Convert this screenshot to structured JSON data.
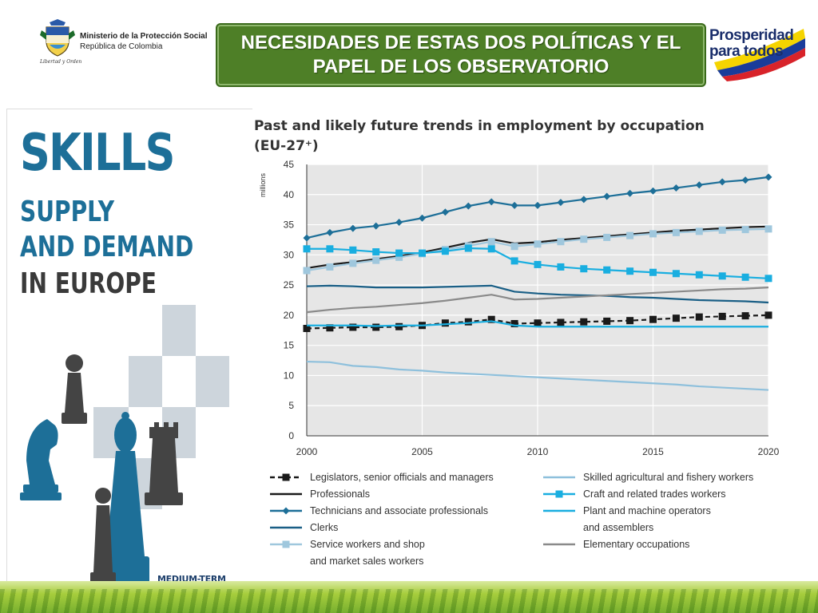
{
  "header": {
    "ministry_line1": "Ministerio de la Protección Social",
    "ministry_line2": "República de Colombia",
    "ministry_motto": "Libertad y Orden",
    "title_line1": "NECESIDADES DE ESTAS DOS POLÍTICAS Y EL",
    "title_line2": "PAPEL DE LOS OBSERVATORIO",
    "brand_word1": "Prosperidad",
    "brand_word2": "para todos",
    "colors": {
      "title_bg": "#4e7f27",
      "brand_navy": "#1a2e6b"
    }
  },
  "cover": {
    "line1": "SKILLS",
    "line2": "SUPPLY",
    "line3": "AND DEMAND",
    "line4": "IN EUROPE",
    "footer": "MEDIUM-TERM FORECAST",
    "colors": {
      "blue": "#1d6f98",
      "dark": "#3a3a3a",
      "tile": "#cdd5dc"
    }
  },
  "chart_data": {
    "type": "line",
    "title_line1": "Past and likely future trends in employment by occupation",
    "title_line2": "(EU-27⁺)",
    "ylabel": "millions",
    "xlabel": "",
    "ylim": [
      0,
      45
    ],
    "xlim": [
      2000,
      2020
    ],
    "yticks": [
      "0",
      "5",
      "10",
      "15",
      "20",
      "25",
      "30",
      "35",
      "40",
      "45"
    ],
    "xticks": [
      "2000",
      "2005",
      "2010",
      "2015",
      "2020"
    ],
    "grid": true,
    "x": [
      2000,
      2001,
      2002,
      2003,
      2004,
      2005,
      2006,
      2007,
      2008,
      2009,
      2010,
      2011,
      2012,
      2013,
      2014,
      2015,
      2016,
      2017,
      2018,
      2019,
      2020
    ],
    "series": [
      {
        "name": "Legislators, senior officials and managers",
        "color": "#1a1a1a",
        "marker": "square",
        "dashed": true,
        "col": 0,
        "row": 0,
        "values": [
          17.8,
          17.9,
          18.0,
          18.0,
          18.1,
          18.3,
          18.7,
          18.9,
          19.3,
          18.6,
          18.7,
          18.8,
          18.9,
          19.0,
          19.1,
          19.3,
          19.5,
          19.7,
          19.8,
          19.9,
          20.0
        ]
      },
      {
        "name": "Professionals",
        "color": "#1a1a1a",
        "marker": "none",
        "dashed": false,
        "col": 0,
        "row": 1,
        "values": [
          27.8,
          28.4,
          28.8,
          29.3,
          29.8,
          30.4,
          31.2,
          32.0,
          32.6,
          31.9,
          32.1,
          32.5,
          32.8,
          33.1,
          33.4,
          33.7,
          34.0,
          34.2,
          34.4,
          34.6,
          34.7
        ]
      },
      {
        "name": "Technicians and associate professionals",
        "color": "#1d6f98",
        "marker": "diamond",
        "dashed": false,
        "col": 0,
        "row": 2,
        "values": [
          32.8,
          33.7,
          34.4,
          34.8,
          35.4,
          36.1,
          37.1,
          38.1,
          38.8,
          38.2,
          38.2,
          38.7,
          39.2,
          39.7,
          40.2,
          40.6,
          41.1,
          41.6,
          42.1,
          42.4,
          42.9
        ]
      },
      {
        "name": "Clerks",
        "color": "#1a5f86",
        "marker": "none",
        "dashed": false,
        "col": 0,
        "row": 3,
        "values": [
          24.8,
          24.9,
          24.8,
          24.6,
          24.6,
          24.6,
          24.7,
          24.8,
          24.9,
          23.9,
          23.6,
          23.4,
          23.3,
          23.2,
          23.0,
          22.9,
          22.7,
          22.5,
          22.4,
          22.3,
          22.1
        ]
      },
      {
        "name": "Service workers and shop",
        "name_line2": "and market sales workers",
        "color": "#9fc7dd",
        "marker": "square",
        "dashed": false,
        "col": 0,
        "row": 4,
        "values": [
          27.4,
          28.0,
          28.6,
          29.1,
          29.6,
          30.2,
          30.9,
          31.5,
          32.2,
          31.4,
          31.8,
          32.2,
          32.6,
          32.9,
          33.2,
          33.5,
          33.7,
          33.9,
          34.1,
          34.2,
          34.3
        ]
      },
      {
        "name": "Skilled agricultural and fishery workers",
        "color": "#8ec0dc",
        "marker": "none",
        "dashed": false,
        "col": 1,
        "row": 0,
        "values": [
          12.3,
          12.2,
          11.6,
          11.4,
          11.0,
          10.8,
          10.5,
          10.3,
          10.1,
          9.9,
          9.7,
          9.5,
          9.3,
          9.1,
          8.9,
          8.7,
          8.5,
          8.2,
          8.0,
          7.8,
          7.6
        ]
      },
      {
        "name": "Craft and related trades workers",
        "color": "#19aee0",
        "marker": "square",
        "dashed": false,
        "col": 1,
        "row": 1,
        "values": [
          31.0,
          31.0,
          30.8,
          30.5,
          30.3,
          30.3,
          30.6,
          31.1,
          31.0,
          29.0,
          28.4,
          28.0,
          27.7,
          27.5,
          27.3,
          27.1,
          26.9,
          26.7,
          26.5,
          26.3,
          26.1
        ]
      },
      {
        "name": "Plant and machine operators",
        "name_line2": "and assemblers",
        "color": "#19aee0",
        "marker": "none",
        "dashed": false,
        "col": 1,
        "row": 2,
        "values": [
          18.3,
          18.3,
          18.3,
          18.2,
          18.3,
          18.3,
          18.5,
          18.7,
          19.0,
          18.3,
          18.1,
          18.1,
          18.1,
          18.1,
          18.1,
          18.1,
          18.1,
          18.1,
          18.1,
          18.1,
          18.1
        ]
      },
      {
        "name": "Elementary occupations",
        "color": "#8a8a8a",
        "marker": "none",
        "dashed": false,
        "col": 1,
        "row": 4,
        "values": [
          20.5,
          20.9,
          21.2,
          21.4,
          21.7,
          22.0,
          22.4,
          22.9,
          23.4,
          22.6,
          22.7,
          22.9,
          23.1,
          23.3,
          23.5,
          23.7,
          23.9,
          24.1,
          24.3,
          24.4,
          24.6
        ]
      }
    ]
  }
}
